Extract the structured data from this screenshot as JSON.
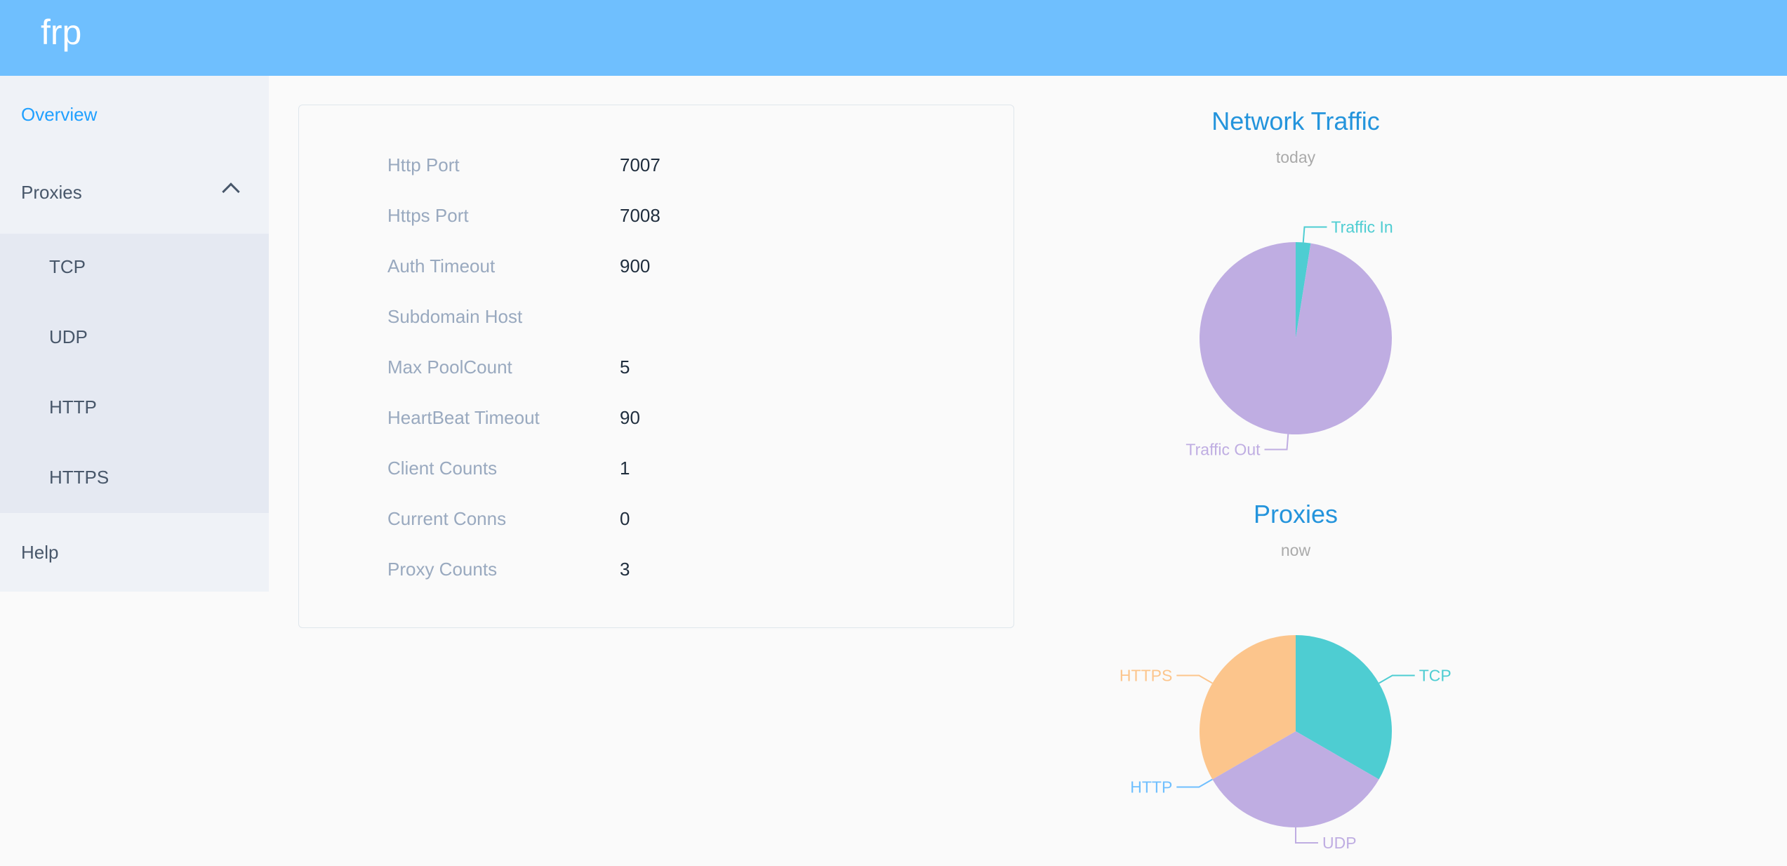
{
  "header": {
    "logo": "frp"
  },
  "sidebar": {
    "overview": "Overview",
    "proxies": "Proxies",
    "sub_items": [
      "TCP",
      "UDP",
      "HTTP",
      "HTTPS"
    ],
    "help": "Help",
    "active_color": "#20a0ff"
  },
  "server_info": [
    {
      "label": "Http Port",
      "value": "7007"
    },
    {
      "label": "Https Port",
      "value": "7008"
    },
    {
      "label": "Auth Timeout",
      "value": "900"
    },
    {
      "label": "Subdomain Host",
      "value": ""
    },
    {
      "label": "Max PoolCount",
      "value": "5"
    },
    {
      "label": "HeartBeat Timeout",
      "value": "90"
    },
    {
      "label": "Client Counts",
      "value": "1"
    },
    {
      "label": "Current Conns",
      "value": "0"
    },
    {
      "label": "Proxy Counts",
      "value": "3"
    }
  ],
  "chart_data": [
    {
      "type": "pie",
      "title": "Network Traffic",
      "subtitle": "today",
      "series": [
        {
          "name": "Traffic In",
          "value": 2.5,
          "color": "#4ecdd2"
        },
        {
          "name": "Traffic Out",
          "value": 97.5,
          "color": "#bfade2"
        }
      ]
    },
    {
      "type": "pie",
      "title": "Proxies",
      "subtitle": "now",
      "series": [
        {
          "name": "TCP",
          "value": 1,
          "color": "#4ecdd2"
        },
        {
          "name": "UDP",
          "value": 1,
          "color": "#bfade2"
        },
        {
          "name": "HTTP",
          "value": 0,
          "color": "#6fbffe"
        },
        {
          "name": "HTTPS",
          "value": 1,
          "color": "#fcc58c"
        }
      ]
    }
  ]
}
